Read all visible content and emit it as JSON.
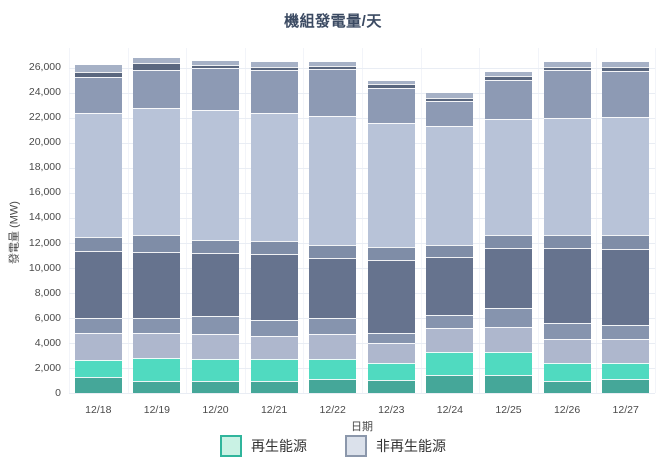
{
  "title": "機組發電量/天",
  "y_axis": {
    "title": "發電量 (MW)",
    "ticks": [
      0,
      2000,
      4000,
      6000,
      8000,
      10000,
      12000,
      14000,
      16000,
      18000,
      20000,
      22000,
      24000,
      26000
    ]
  },
  "x_axis": {
    "title": "日期"
  },
  "legend": [
    {
      "label": "再生能源",
      "fill": "#c9f2e4",
      "border": "#30b59c"
    },
    {
      "label": "非再生能源",
      "fill": "#dbe1eb",
      "border": "#8b97ab"
    }
  ],
  "chart_data": {
    "type": "bar",
    "stacked": true,
    "title": "機組發電量/天",
    "xlabel": "日期",
    "ylabel": "發電量 (MW)",
    "ylim": [
      0,
      27000
    ],
    "grid": true,
    "legend_position": "bottom",
    "categories": [
      "12/18",
      "12/19",
      "12/20",
      "12/21",
      "12/22",
      "12/23",
      "12/24",
      "12/25",
      "12/26",
      "12/27"
    ],
    "series": [
      {
        "legend_group": "再生能源",
        "color": "#45a799",
        "values": [
          1300,
          1000,
          1000,
          1000,
          1150,
          1100,
          1450,
          1450,
          1000,
          1150
        ]
      },
      {
        "legend_group": "再生能源",
        "color": "#50dac0",
        "values": [
          1350,
          1830,
          1730,
          1730,
          1580,
          1300,
          1850,
          1870,
          1400,
          1300
        ]
      },
      {
        "legend_group": "非再生能源",
        "color": "#aeb7cd",
        "values": [
          2140,
          1960,
          1980,
          1850,
          1980,
          1650,
          1940,
          2010,
          1920,
          1870
        ]
      },
      {
        "legend_group": "非再生能源",
        "color": "#8694ae",
        "values": [
          1190,
          1240,
          1450,
          1260,
          1320,
          790,
          1050,
          1490,
          1320,
          1100
        ]
      },
      {
        "legend_group": "非再生能源",
        "color": "#66738e",
        "values": [
          5370,
          5230,
          5050,
          5280,
          4750,
          5810,
          4620,
          4750,
          5930,
          6070
        ]
      },
      {
        "legend_group": "非再生能源",
        "color": "#7f8da7",
        "values": [
          1150,
          1420,
          1020,
          1060,
          1050,
          1050,
          920,
          1060,
          1060,
          1140
        ]
      },
      {
        "legend_group": "非再生能源",
        "color": "#b8c3d8",
        "values": [
          9890,
          10110,
          10430,
          10210,
          10300,
          9900,
          9510,
          9260,
          9370,
          9420
        ]
      },
      {
        "legend_group": "非再生能源",
        "color": "#8d9ab4",
        "values": [
          2830,
          3040,
          3350,
          3440,
          3770,
          2770,
          1980,
          3140,
          3830,
          3700
        ]
      },
      {
        "legend_group": "非再生能源",
        "color": "#5a677f",
        "values": [
          420,
          520,
          220,
          260,
          260,
          320,
          260,
          270,
          260,
          340
        ]
      },
      {
        "legend_group": "非再生能源",
        "color": "#a6b1c6",
        "values": [
          590,
          450,
          320,
          400,
          330,
          270,
          400,
          390,
          400,
          350
        ]
      }
    ],
    "totals": [
      26230,
      26800,
      26550,
      26490,
      26490,
      24960,
      23980,
      25690,
      26490,
      26440
    ],
    "renewable_totals": [
      2650,
      2830,
      2730,
      2730,
      2730,
      2400,
      3300,
      3320,
      2400,
      2450
    ]
  }
}
